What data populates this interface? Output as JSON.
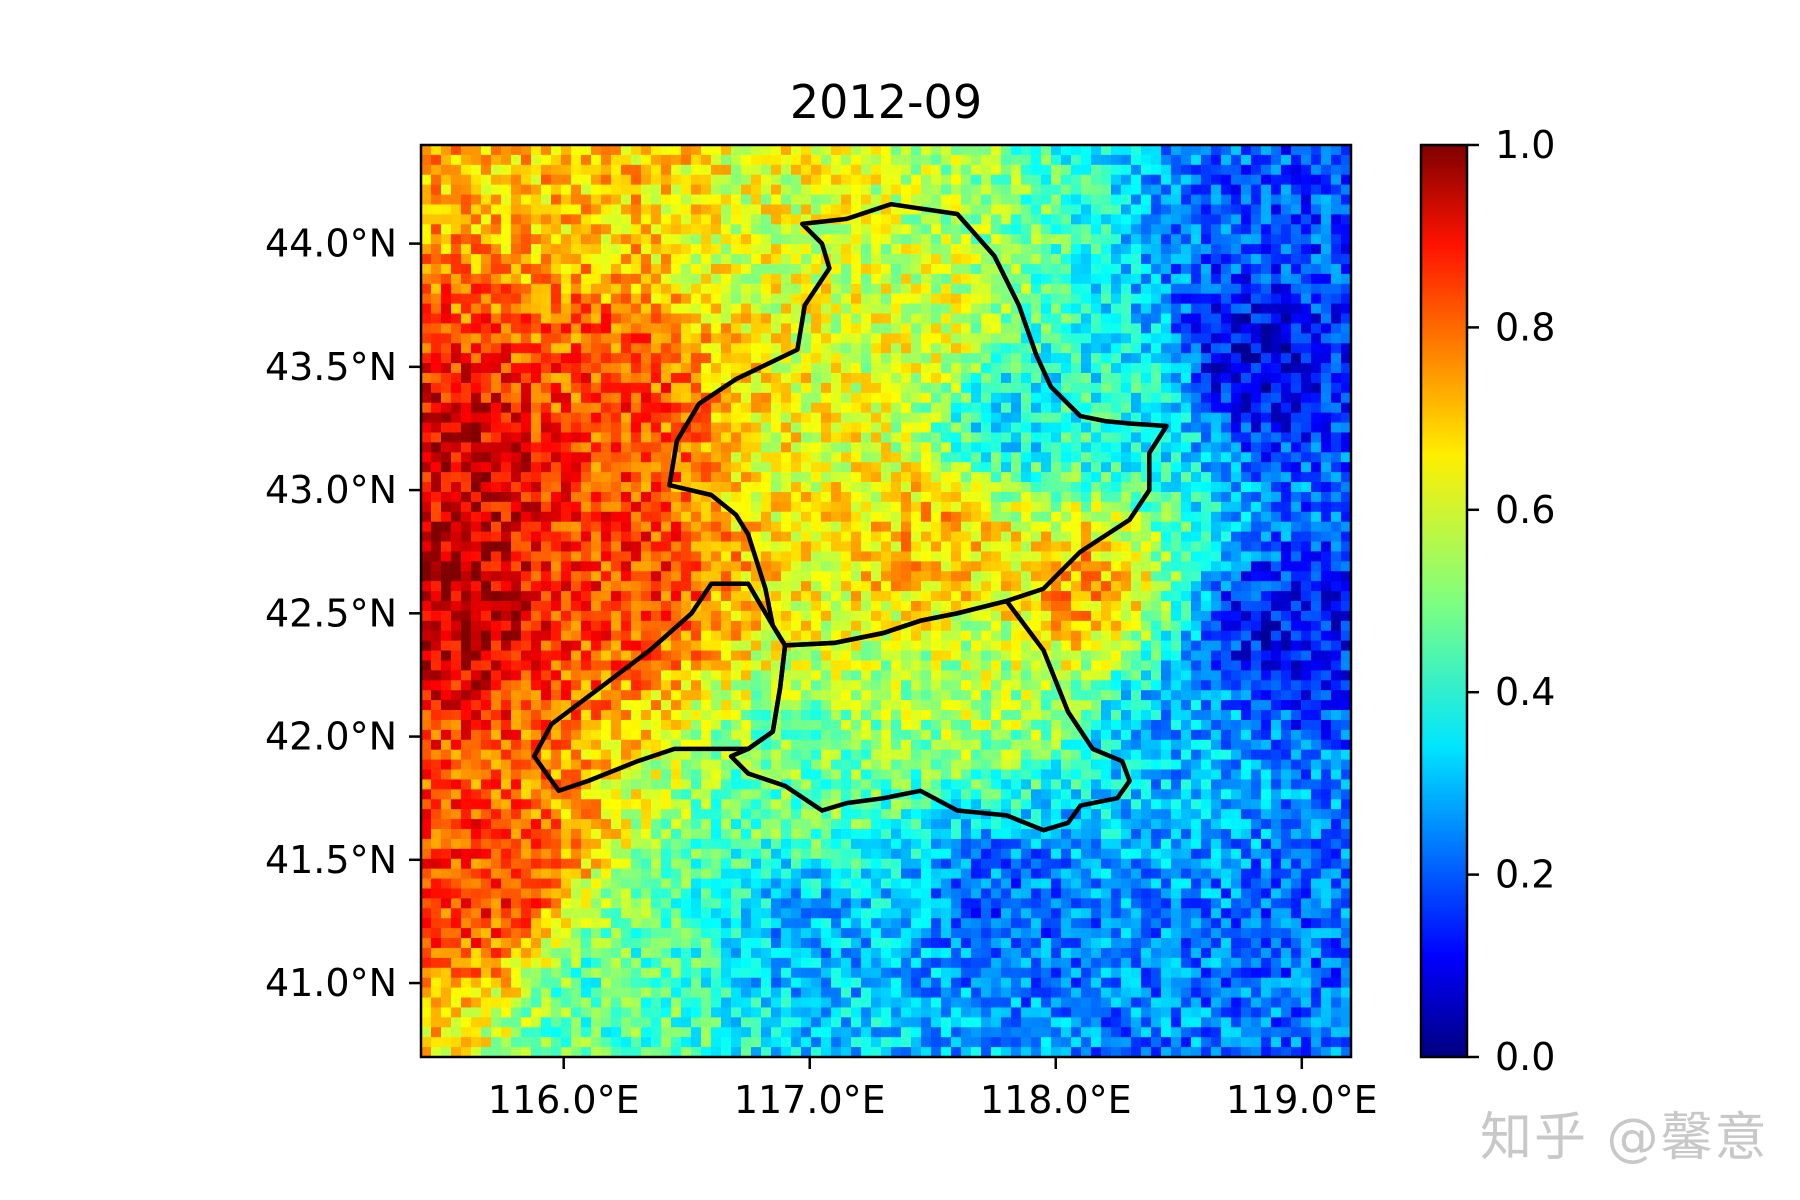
{
  "chart_data": {
    "type": "heatmap",
    "title": "2012-09",
    "xlabel": "",
    "ylabel": "",
    "xlim": [
      115.42,
      119.2
    ],
    "ylim": [
      40.7,
      44.4
    ],
    "x_ticks": [
      {
        "value": 116.0,
        "label": "116.0°E"
      },
      {
        "value": 117.0,
        "label": "117.0°E"
      },
      {
        "value": 118.0,
        "label": "118.0°E"
      },
      {
        "value": 119.0,
        "label": "119.0°E"
      }
    ],
    "y_ticks": [
      {
        "value": 41.0,
        "label": "41.0°N"
      },
      {
        "value": 41.5,
        "label": "41.5°N"
      },
      {
        "value": 42.0,
        "label": "42.0°N"
      },
      {
        "value": 42.5,
        "label": "42.5°N"
      },
      {
        "value": 43.0,
        "label": "43.0°N"
      },
      {
        "value": 43.5,
        "label": "43.5°N"
      },
      {
        "value": 44.0,
        "label": "44.0°N"
      }
    ],
    "colorbar": {
      "colormap": "jet",
      "range": [
        0.0,
        1.0
      ],
      "ticks": [
        {
          "value": 0.0,
          "label": "0.0"
        },
        {
          "value": 0.2,
          "label": "0.2"
        },
        {
          "value": 0.4,
          "label": "0.4"
        },
        {
          "value": 0.6,
          "label": "0.6"
        },
        {
          "value": 0.8,
          "label": "0.8"
        },
        {
          "value": 1.0,
          "label": "1.0"
        }
      ]
    },
    "field_description": "values ~0.85-0.95 in west (lon<116.3), ~0.55-0.65 central, ~0.1-0.3 east (lon>118.5) and southeast",
    "field_control_points": [
      {
        "lon": 115.5,
        "lat": 42.6,
        "value": 0.95
      },
      {
        "lon": 115.6,
        "lat": 43.1,
        "value": 0.9
      },
      {
        "lon": 115.7,
        "lat": 41.4,
        "value": 0.82
      },
      {
        "lon": 116.2,
        "lat": 43.4,
        "value": 0.8
      },
      {
        "lon": 116.3,
        "lat": 42.7,
        "value": 0.82
      },
      {
        "lon": 116.1,
        "lat": 44.2,
        "value": 0.68
      },
      {
        "lon": 116.8,
        "lat": 44.0,
        "value": 0.6
      },
      {
        "lon": 117.0,
        "lat": 43.0,
        "value": 0.62
      },
      {
        "lon": 117.5,
        "lat": 42.8,
        "value": 0.7
      },
      {
        "lon": 117.5,
        "lat": 43.6,
        "value": 0.6
      },
      {
        "lon": 117.8,
        "lat": 43.3,
        "value": 0.35
      },
      {
        "lon": 117.7,
        "lat": 42.2,
        "value": 0.55
      },
      {
        "lon": 118.1,
        "lat": 42.6,
        "value": 0.72
      },
      {
        "lon": 117.0,
        "lat": 41.8,
        "value": 0.48
      },
      {
        "lon": 116.2,
        "lat": 41.0,
        "value": 0.45
      },
      {
        "lon": 117.0,
        "lat": 41.2,
        "value": 0.3
      },
      {
        "lon": 117.8,
        "lat": 41.3,
        "value": 0.22
      },
      {
        "lon": 118.3,
        "lat": 43.3,
        "value": 0.4
      },
      {
        "lon": 118.8,
        "lat": 43.5,
        "value": 0.1
      },
      {
        "lon": 119.0,
        "lat": 44.1,
        "value": 0.2
      },
      {
        "lon": 118.9,
        "lat": 42.4,
        "value": 0.12
      },
      {
        "lon": 118.5,
        "lat": 42.0,
        "value": 0.3
      },
      {
        "lon": 119.0,
        "lat": 41.2,
        "value": 0.22
      },
      {
        "lon": 118.4,
        "lat": 40.9,
        "value": 0.25
      }
    ],
    "boundary_polylines": [
      {
        "name": "northern-region",
        "points": [
          [
            117.33,
            44.16
          ],
          [
            117.6,
            44.12
          ],
          [
            117.75,
            43.95
          ],
          [
            117.85,
            43.75
          ],
          [
            117.92,
            43.55
          ],
          [
            117.98,
            43.42
          ],
          [
            118.1,
            43.3
          ],
          [
            118.2,
            43.28
          ],
          [
            118.3,
            43.27
          ],
          [
            118.45,
            43.26
          ],
          [
            118.38,
            43.15
          ],
          [
            118.38,
            43.0
          ],
          [
            118.3,
            42.88
          ],
          [
            118.1,
            42.75
          ],
          [
            117.95,
            42.6
          ],
          [
            117.8,
            42.55
          ],
          [
            117.6,
            42.5
          ],
          [
            117.45,
            42.47
          ],
          [
            117.3,
            42.42
          ],
          [
            117.1,
            42.38
          ],
          [
            116.9,
            42.37
          ],
          [
            116.85,
            42.45
          ],
          [
            116.82,
            42.6
          ],
          [
            116.75,
            42.82
          ],
          [
            116.7,
            42.9
          ],
          [
            116.6,
            42.98
          ],
          [
            116.43,
            43.02
          ],
          [
            116.46,
            43.2
          ],
          [
            116.55,
            43.35
          ],
          [
            116.7,
            43.45
          ],
          [
            116.95,
            43.57
          ],
          [
            116.98,
            43.75
          ],
          [
            117.08,
            43.9
          ],
          [
            117.05,
            44.0
          ],
          [
            116.97,
            44.08
          ],
          [
            117.15,
            44.1
          ],
          [
            117.33,
            44.16
          ]
        ]
      },
      {
        "name": "western-region",
        "points": [
          [
            116.75,
            42.62
          ],
          [
            116.85,
            42.45
          ],
          [
            116.9,
            42.37
          ],
          [
            116.88,
            42.2
          ],
          [
            116.85,
            42.02
          ],
          [
            116.75,
            41.95
          ],
          [
            116.6,
            41.95
          ],
          [
            116.45,
            41.95
          ],
          [
            116.3,
            41.9
          ],
          [
            116.1,
            41.82
          ],
          [
            115.98,
            41.78
          ],
          [
            115.88,
            41.92
          ],
          [
            115.95,
            42.05
          ],
          [
            116.15,
            42.2
          ],
          [
            116.35,
            42.35
          ],
          [
            116.52,
            42.5
          ],
          [
            116.6,
            42.62
          ],
          [
            116.75,
            42.62
          ]
        ]
      },
      {
        "name": "southern-region",
        "points": [
          [
            116.9,
            42.37
          ],
          [
            117.1,
            42.38
          ],
          [
            117.3,
            42.42
          ],
          [
            117.45,
            42.47
          ],
          [
            117.6,
            42.5
          ],
          [
            117.8,
            42.55
          ],
          [
            117.95,
            42.35
          ],
          [
            118.05,
            42.1
          ],
          [
            118.15,
            41.95
          ],
          [
            118.27,
            41.9
          ],
          [
            118.3,
            41.82
          ],
          [
            118.25,
            41.75
          ],
          [
            118.1,
            41.72
          ],
          [
            118.05,
            41.65
          ],
          [
            117.95,
            41.62
          ],
          [
            117.8,
            41.68
          ],
          [
            117.6,
            41.7
          ],
          [
            117.45,
            41.78
          ],
          [
            117.3,
            41.75
          ],
          [
            117.15,
            41.73
          ],
          [
            117.05,
            41.7
          ],
          [
            116.9,
            41.8
          ],
          [
            116.75,
            41.85
          ],
          [
            116.68,
            41.92
          ],
          [
            116.75,
            41.95
          ],
          [
            116.85,
            42.02
          ],
          [
            116.88,
            42.2
          ],
          [
            116.9,
            42.37
          ]
        ]
      }
    ]
  },
  "watermark": {
    "text": "知乎 @馨意"
  }
}
